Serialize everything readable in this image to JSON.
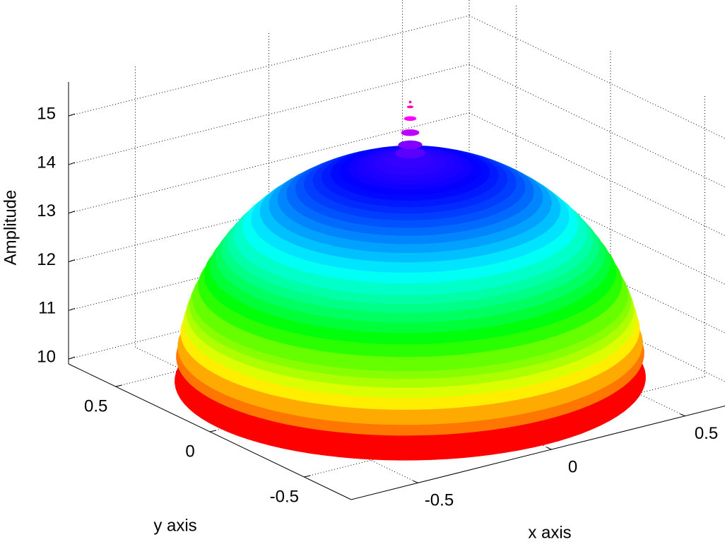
{
  "chart_data": {
    "type": "surface3d",
    "xlabel": "x axis",
    "ylabel": "y axis",
    "zlabel": "Amplitude",
    "xlim": [
      -0.75,
      0.75
    ],
    "ylim": [
      -0.75,
      0.75
    ],
    "zlim": [
      9.9,
      15.7
    ],
    "xticks": [
      -0.5,
      0,
      0.5
    ],
    "yticks": [
      -0.5,
      0,
      0.5
    ],
    "zticks": [
      10,
      11,
      12,
      13,
      14,
      15
    ],
    "grid": true,
    "colormap": "hsv",
    "surface": {
      "r": [
        0,
        0.009,
        0.018,
        0.027,
        0.036,
        0.045,
        0.063,
        0.081,
        0.108,
        0.135,
        0.162,
        0.189,
        0.216,
        0.243,
        0.27,
        0.297,
        0.324,
        0.351,
        0.378,
        0.405,
        0.432,
        0.459,
        0.486,
        0.513,
        0.54,
        0.558,
        0.576,
        0.594,
        0.612,
        0.63,
        0.648,
        0.666,
        0.675,
        0.684,
        0.693,
        0.702,
        0.711,
        0.7155,
        0.72
      ],
      "z": [
        15.65,
        15.55,
        15.31,
        15.02,
        14.77,
        14.6,
        14.45,
        14.42,
        14.4,
        14.37,
        14.33,
        14.29,
        14.24,
        14.19,
        14.12,
        14.05,
        13.97,
        13.88,
        13.78,
        13.67,
        13.55,
        13.42,
        13.27,
        13.11,
        12.93,
        12.79,
        12.65,
        12.49,
        12.32,
        12.13,
        11.91,
        11.66,
        11.52,
        11.36,
        11.17,
        10.95,
        10.66,
        10.45,
        9.95
      ]
    }
  }
}
